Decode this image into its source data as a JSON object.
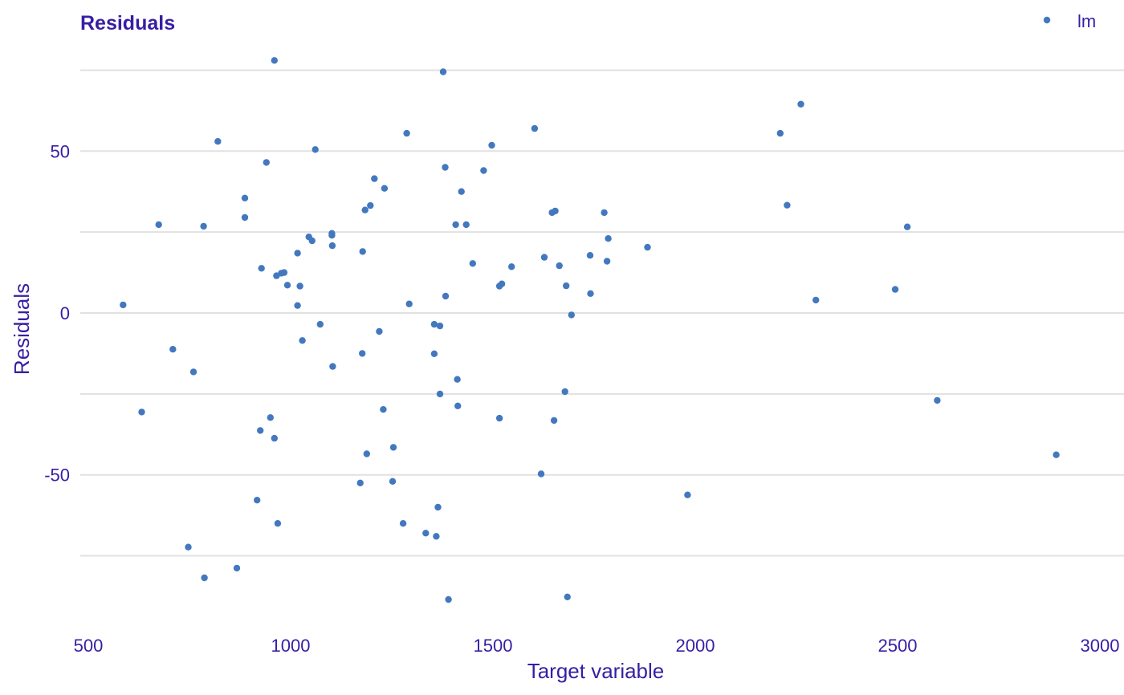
{
  "chart_data": {
    "type": "scatter",
    "title": "Residuals",
    "xlabel": "Target variable",
    "ylabel": "Residuals",
    "xlim": [
      500,
      3000
    ],
    "ylim": [
      -99,
      78
    ],
    "x_ticks": [
      500,
      1000,
      1500,
      2000,
      2500,
      3000
    ],
    "x_tick_labels": [
      "500",
      "1000",
      "1500",
      "2000",
      "2500",
      "3000"
    ],
    "y_ticks": [
      50,
      0,
      -50
    ],
    "y_tick_labels": [
      "50",
      "0",
      "-50"
    ],
    "y_gridlines": [
      75,
      50,
      25,
      0,
      -25,
      -50,
      -75
    ],
    "grid": "horizontal",
    "legend": {
      "position": "top-right",
      "entries": [
        "lm"
      ]
    },
    "colors": {
      "text": "#371ea3",
      "point": "#4378bf",
      "grid": "#e1e1e1"
    },
    "series": [
      {
        "name": "lm",
        "points": [
          [
            960,
            78
          ],
          [
            1377,
            74.5
          ],
          [
            2261,
            64.5
          ],
          [
            1603,
            57
          ],
          [
            2210,
            55.5
          ],
          [
            1287,
            55.5
          ],
          [
            820,
            53
          ],
          [
            1497,
            51.8
          ],
          [
            1061,
            50.5
          ],
          [
            940,
            46.5
          ],
          [
            1382,
            45
          ],
          [
            1477,
            44
          ],
          [
            1207,
            41.5
          ],
          [
            1232,
            38.5
          ],
          [
            1422,
            37.5
          ],
          [
            887,
            35.5
          ],
          [
            1197,
            33.2
          ],
          [
            2227,
            33.3
          ],
          [
            1184,
            31.8
          ],
          [
            1654,
            31.5
          ],
          [
            1646,
            31
          ],
          [
            1775,
            31
          ],
          [
            887,
            29.5
          ],
          [
            674,
            27.3
          ],
          [
            785,
            26.8
          ],
          [
            1408,
            27.3
          ],
          [
            1434,
            27.3
          ],
          [
            2524,
            26.6
          ],
          [
            1045,
            23.5
          ],
          [
            1102,
            24.6
          ],
          [
            1102,
            24
          ],
          [
            1785,
            23
          ],
          [
            1053,
            22.3
          ],
          [
            1103,
            20.8
          ],
          [
            1882,
            20.3
          ],
          [
            1017,
            18.5
          ],
          [
            1178,
            19
          ],
          [
            1740,
            17.8
          ],
          [
            1627,
            17.2
          ],
          [
            1782,
            16
          ],
          [
            1450,
            15.3
          ],
          [
            1664,
            14.6
          ],
          [
            1546,
            14.3
          ],
          [
            928,
            13.8
          ],
          [
            984,
            12.5
          ],
          [
            977,
            12.3
          ],
          [
            965,
            11.5
          ],
          [
            992,
            8.6
          ],
          [
            1023,
            8.3
          ],
          [
            1522,
            9
          ],
          [
            1516,
            8.3
          ],
          [
            1681,
            8.4
          ],
          [
            2494,
            7.3
          ],
          [
            1741,
            6
          ],
          [
            1383,
            5.2
          ],
          [
            2298,
            4
          ],
          [
            1293,
            2.8
          ],
          [
            586,
            2.5
          ],
          [
            1017,
            2.3
          ],
          [
            1694,
            -0.6
          ],
          [
            1073,
            -3.5
          ],
          [
            1355,
            -3.5
          ],
          [
            1369,
            -4
          ],
          [
            1219,
            -5.7
          ],
          [
            1029,
            -8.5
          ],
          [
            709,
            -11.2
          ],
          [
            1177,
            -12.5
          ],
          [
            1355,
            -12.6
          ],
          [
            1104,
            -16.5
          ],
          [
            760,
            -18.2
          ],
          [
            1412,
            -20.5
          ],
          [
            1678,
            -24.3
          ],
          [
            1369,
            -25
          ],
          [
            2598,
            -27
          ],
          [
            1413,
            -28.7
          ],
          [
            1229,
            -29.8
          ],
          [
            632,
            -30.6
          ],
          [
            950,
            -32.3
          ],
          [
            1516,
            -32.5
          ],
          [
            1651,
            -33.2
          ],
          [
            925,
            -36.3
          ],
          [
            960,
            -38.7
          ],
          [
            1254,
            -41.5
          ],
          [
            1188,
            -43.5
          ],
          [
            2892,
            -43.8
          ],
          [
            1619,
            -49.7
          ],
          [
            1252,
            -52
          ],
          [
            1172,
            -52.5
          ],
          [
            1981,
            -56.2
          ],
          [
            917,
            -57.8
          ],
          [
            1364,
            -60
          ],
          [
            968,
            -65
          ],
          [
            1278,
            -65
          ],
          [
            1334,
            -68
          ],
          [
            1360,
            -69
          ],
          [
            747,
            -72.3
          ],
          [
            867,
            -78.8
          ],
          [
            787,
            -81.8
          ],
          [
            1684,
            -87.7
          ],
          [
            1390,
            -88.5
          ]
        ]
      }
    ]
  }
}
